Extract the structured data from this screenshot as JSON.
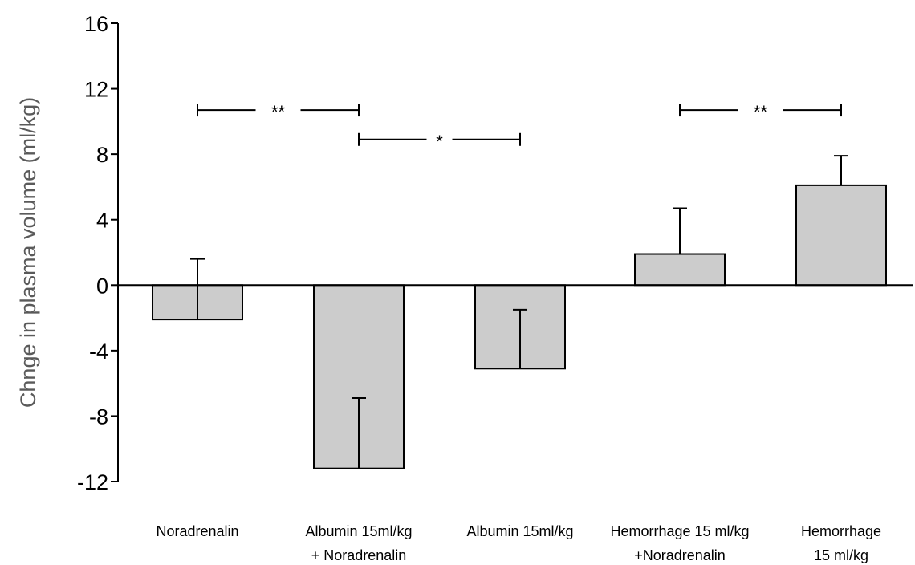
{
  "chart_data": {
    "type": "bar",
    "title": "",
    "xlabel": "",
    "ylabel": "Chnge in plasma volume (ml/kg)",
    "ylim": [
      -12,
      16
    ],
    "yticks": [
      16,
      12,
      8,
      4,
      0,
      -4,
      -8,
      -12
    ],
    "grid": false,
    "categories": [
      [
        "Noradrenalin"
      ],
      [
        "Albumin 15ml/kg",
        "+ Noradrenalin"
      ],
      [
        "Albumin 15ml/kg"
      ],
      [
        "Hemorrhage 15 ml/kg",
        "+Noradrenalin"
      ],
      [
        "Hemorrhage",
        "15 ml/kg"
      ]
    ],
    "values": [
      -2.1,
      -11.2,
      -5.1,
      1.9,
      6.1
    ],
    "errors": [
      3.7,
      4.3,
      3.6,
      2.8,
      1.8
    ],
    "bar_color": "#cccccc",
    "significance": [
      {
        "from": 0,
        "to": 1,
        "y": 10.7,
        "label": "**"
      },
      {
        "from": 1,
        "to": 2,
        "y": 8.9,
        "label": "*"
      },
      {
        "from": 3,
        "to": 4,
        "y": 10.7,
        "label": "**"
      }
    ]
  }
}
